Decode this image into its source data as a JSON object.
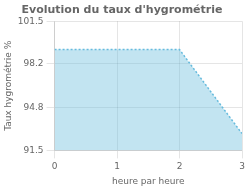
{
  "chart_data": {
    "type": "area",
    "title": "Evolution du taux d'hygrométrie",
    "xlabel": "heure par heure",
    "ylabel": "Taux hygrométrie %",
    "x": [
      0,
      2,
      3
    ],
    "values": [
      99.3,
      99.3,
      92.8
    ],
    "color": "#66bbdd",
    "line_style": "dotted",
    "xlim": [
      0,
      3
    ],
    "ylim": [
      91.5,
      101.5
    ],
    "xticks": [
      0,
      1,
      2,
      3
    ],
    "yticks": [
      91.5,
      94.8,
      98.2,
      101.5
    ],
    "grid": true
  }
}
